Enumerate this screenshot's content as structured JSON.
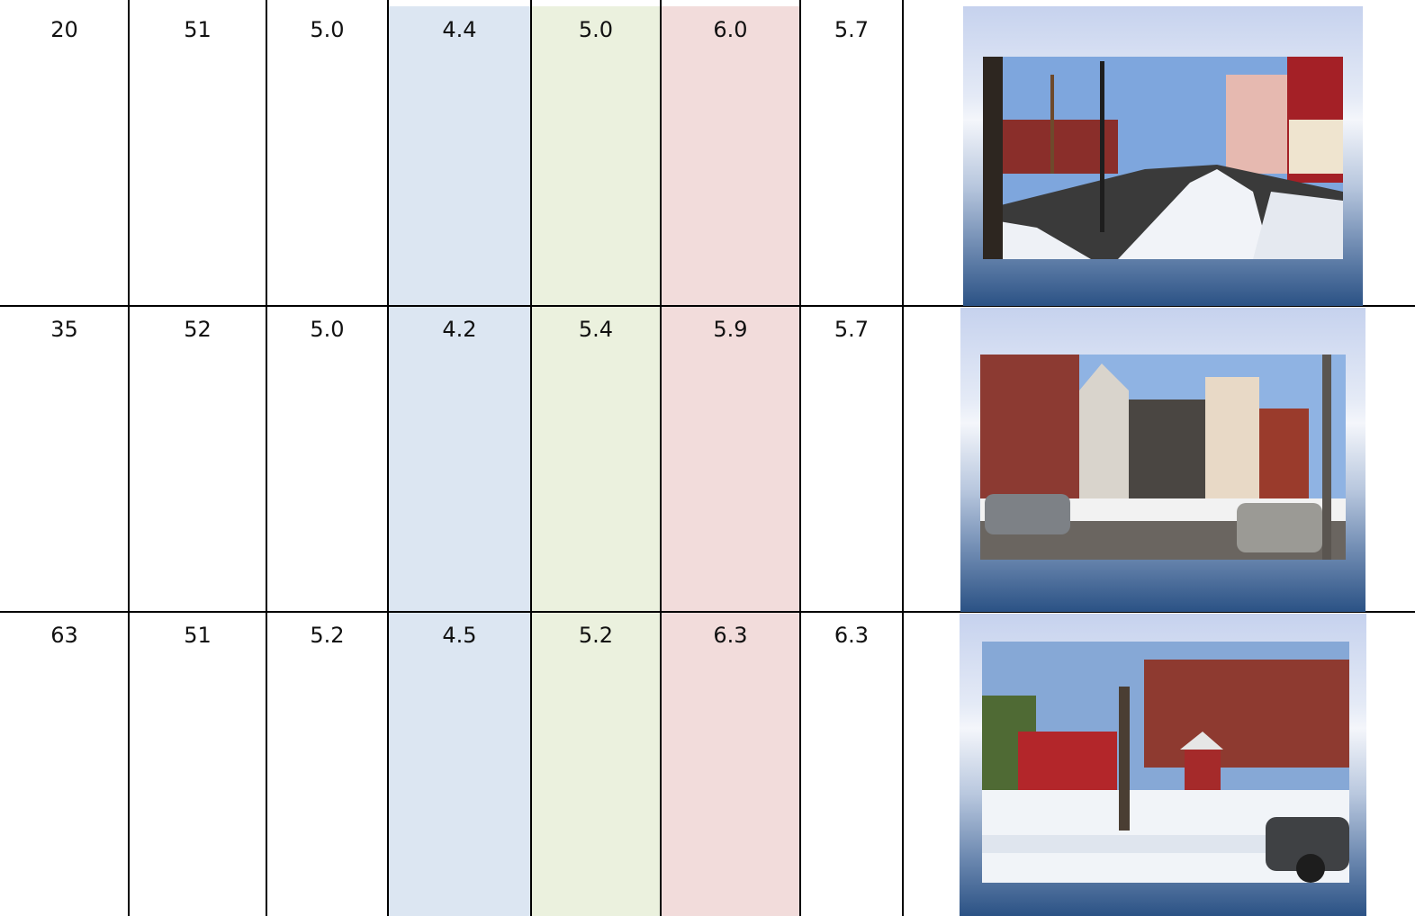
{
  "table": {
    "rows": [
      [
        "20",
        "51",
        "5.0",
        "4.4",
        "5.0",
        "6.0",
        "5.7"
      ],
      [
        "35",
        "52",
        "5.0",
        "4.2",
        "5.4",
        "5.9",
        "5.7"
      ],
      [
        "63",
        "51",
        "5.2",
        "4.5",
        "5.2",
        "6.3",
        "6.3"
      ]
    ]
  }
}
